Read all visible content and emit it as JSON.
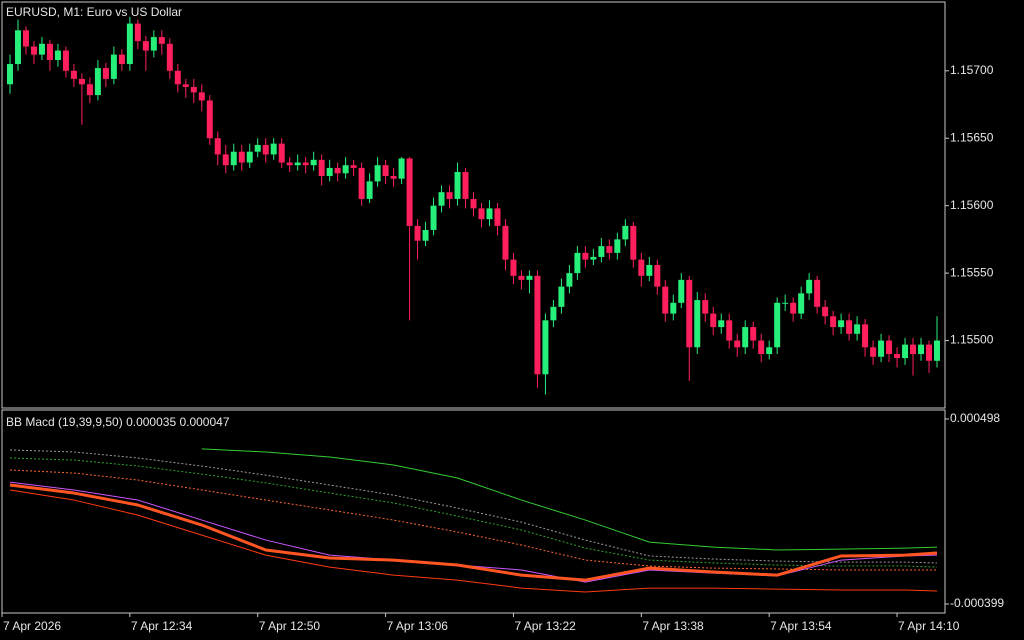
{
  "chart_data": [
    {
      "type": "candlestick",
      "title": "EURUSD, M1:  Euro vs US Dollar",
      "up_color": "#26f07a",
      "down_color": "#ff1f5c",
      "xlim": [
        -1,
        117
      ],
      "ylim": [
        1.1545,
        1.15751
      ],
      "yticks": [
        {
          "value": 1.157,
          "label": "1.15700"
        },
        {
          "value": 1.1565,
          "label": "1.15650"
        },
        {
          "value": 1.156,
          "label": "1.15600"
        },
        {
          "value": 1.1555,
          "label": "1.15550"
        },
        {
          "value": 1.155,
          "label": "1.15500"
        }
      ],
      "open": [
        1.1569,
        1.15705,
        1.1573,
        1.15718,
        1.15712,
        1.1572,
        1.15708,
        1.15715,
        1.157,
        1.15694,
        1.1569,
        1.15682,
        1.15702,
        1.15694,
        1.15712,
        1.15705,
        1.15735,
        1.15722,
        1.15715,
        1.15725,
        1.1572,
        1.157,
        1.1569,
        1.15688,
        1.15684,
        1.15678,
        1.1565,
        1.15638,
        1.1563,
        1.1564,
        1.15632,
        1.1564,
        1.15645,
        1.15638,
        1.15646,
        1.15632,
        1.1563,
        1.15632,
        1.1563,
        1.15634,
        1.15622,
        1.15628,
        1.15624,
        1.1563,
        1.15628,
        1.15605,
        1.15618,
        1.1563,
        1.15622,
        1.1562,
        1.15635,
        1.15585,
        1.15574,
        1.15582,
        1.156,
        1.1561,
        1.15605,
        1.15625,
        1.15605,
        1.15598,
        1.1559,
        1.15598,
        1.15585,
        1.1556,
        1.15548,
        1.15545,
        1.15548,
        1.15475,
        1.15515,
        1.15525,
        1.1554,
        1.1555,
        1.15565,
        1.1556,
        1.15562,
        1.1557,
        1.15565,
        1.15575,
        1.15585,
        1.1556,
        1.15548,
        1.15556,
        1.1554,
        1.1552,
        1.15528,
        1.15545,
        1.15495,
        1.1553,
        1.1552,
        1.1551,
        1.15515,
        1.155,
        1.15495,
        1.1551,
        1.155,
        1.1549,
        1.15495,
        1.15528,
        1.15528,
        1.1552,
        1.15535,
        1.15545,
        1.15525,
        1.15518,
        1.1551,
        1.15515,
        1.15505,
        1.15512,
        1.15495,
        1.15488,
        1.155,
        1.1549,
        1.15487,
        1.15497,
        1.1549,
        1.15497,
        1.15485
      ],
      "high": [
        1.15712,
        1.15738,
        1.15733,
        1.15722,
        1.15725,
        1.15723,
        1.1572,
        1.15718,
        1.15705,
        1.15698,
        1.15695,
        1.15708,
        1.15706,
        1.15718,
        1.15716,
        1.1574,
        1.15738,
        1.15726,
        1.1573,
        1.1573,
        1.15724,
        1.15705,
        1.15694,
        1.15694,
        1.1569,
        1.15682,
        1.15655,
        1.15645,
        1.15646,
        1.15645,
        1.15646,
        1.1565,
        1.1565,
        1.1565,
        1.1565,
        1.15636,
        1.15638,
        1.15636,
        1.1564,
        1.15638,
        1.15634,
        1.15632,
        1.15636,
        1.15634,
        1.15632,
        1.15624,
        1.15636,
        1.15634,
        1.15628,
        1.15636,
        1.15636,
        1.1559,
        1.15588,
        1.15606,
        1.15615,
        1.15615,
        1.15632,
        1.15628,
        1.1561,
        1.15602,
        1.15604,
        1.15602,
        1.1559,
        1.15565,
        1.15552,
        1.15552,
        1.15552,
        1.1552,
        1.1553,
        1.15546,
        1.15556,
        1.1557,
        1.1557,
        1.15568,
        1.15576,
        1.15575,
        1.1558,
        1.1559,
        1.15588,
        1.15565,
        1.15562,
        1.1556,
        1.15545,
        1.15534,
        1.1555,
        1.15548,
        1.15536,
        1.15535,
        1.15525,
        1.1552,
        1.1552,
        1.15505,
        1.15515,
        1.15514,
        1.15505,
        1.155,
        1.15532,
        1.15534,
        1.15532,
        1.1554,
        1.1555,
        1.15548,
        1.1553,
        1.15522,
        1.1552,
        1.1552,
        1.15518,
        1.15516,
        1.155,
        1.15505,
        1.15504,
        1.15495,
        1.15502,
        1.15502,
        1.15502,
        1.155,
        1.15518
      ],
      "low": [
        1.15683,
        1.157,
        1.15712,
        1.15705,
        1.15708,
        1.157,
        1.15703,
        1.15695,
        1.15688,
        1.1566,
        1.15676,
        1.15678,
        1.15688,
        1.1569,
        1.157,
        1.157,
        1.15716,
        1.157,
        1.1571,
        1.15712,
        1.15694,
        1.15684,
        1.1568,
        1.15676,
        1.1567,
        1.15645,
        1.1563,
        1.15624,
        1.15626,
        1.15626,
        1.15628,
        1.15636,
        1.15632,
        1.15634,
        1.15628,
        1.15625,
        1.15626,
        1.15624,
        1.15626,
        1.15615,
        1.15618,
        1.15618,
        1.1562,
        1.15622,
        1.156,
        1.15602,
        1.15614,
        1.15616,
        1.15614,
        1.15616,
        1.15515,
        1.1556,
        1.1557,
        1.15578,
        1.15595,
        1.15598,
        1.156,
        1.15598,
        1.15592,
        1.15584,
        1.15585,
        1.15578,
        1.15552,
        1.15542,
        1.15538,
        1.15535,
        1.15465,
        1.1546,
        1.1551,
        1.1552,
        1.15535,
        1.15545,
        1.15554,
        1.15556,
        1.15558,
        1.1556,
        1.1556,
        1.1557,
        1.15554,
        1.1554,
        1.15544,
        1.15534,
        1.15514,
        1.15515,
        1.15524,
        1.1547,
        1.1549,
        1.15514,
        1.15504,
        1.15505,
        1.15494,
        1.15488,
        1.1549,
        1.15494,
        1.15484,
        1.15486,
        1.1549,
        1.15522,
        1.15514,
        1.15516,
        1.1553,
        1.1552,
        1.15512,
        1.15504,
        1.15505,
        1.155,
        1.155,
        1.15488,
        1.15482,
        1.15484,
        1.15484,
        1.1548,
        1.15482,
        1.15474,
        1.15485,
        1.15476,
        1.1548
      ],
      "close": [
        1.15705,
        1.1573,
        1.15718,
        1.15712,
        1.1572,
        1.15708,
        1.15715,
        1.157,
        1.15694,
        1.1569,
        1.15682,
        1.15702,
        1.15694,
        1.15712,
        1.15705,
        1.15735,
        1.15722,
        1.15715,
        1.15725,
        1.1572,
        1.157,
        1.1569,
        1.15688,
        1.15684,
        1.15678,
        1.1565,
        1.15638,
        1.1563,
        1.1564,
        1.15632,
        1.1564,
        1.15645,
        1.15638,
        1.15646,
        1.15632,
        1.1563,
        1.15632,
        1.1563,
        1.15634,
        1.15622,
        1.15628,
        1.15624,
        1.1563,
        1.15628,
        1.15605,
        1.15618,
        1.1563,
        1.15622,
        1.1562,
        1.15635,
        1.15585,
        1.15574,
        1.15582,
        1.156,
        1.1561,
        1.15605,
        1.15625,
        1.15605,
        1.15598,
        1.1559,
        1.15598,
        1.15585,
        1.1556,
        1.15548,
        1.15545,
        1.15548,
        1.15475,
        1.15515,
        1.15525,
        1.1554,
        1.1555,
        1.15565,
        1.1556,
        1.15562,
        1.1557,
        1.15565,
        1.15575,
        1.15585,
        1.1556,
        1.15548,
        1.15556,
        1.1554,
        1.1552,
        1.15528,
        1.15545,
        1.15495,
        1.1553,
        1.1552,
        1.1551,
        1.15515,
        1.155,
        1.15495,
        1.1551,
        1.155,
        1.1549,
        1.15495,
        1.15528,
        1.15528,
        1.1552,
        1.15535,
        1.15545,
        1.15525,
        1.15518,
        1.1551,
        1.15515,
        1.15505,
        1.15512,
        1.15495,
        1.15488,
        1.155,
        1.1549,
        1.15487,
        1.15497,
        1.1549,
        1.15497,
        1.15485,
        1.155
      ]
    },
    {
      "type": "line",
      "title": "BB Macd (19,39,9,50) 0.000035 0.000047",
      "xlim": [
        -1,
        117
      ],
      "ylim": [
        -0.000399,
        0.000498
      ],
      "yticks": [
        0.000498,
        -0.000399
      ],
      "xticks": [
        {
          "value": -1,
          "label": "7 Apr 2026"
        },
        {
          "value": 15,
          "label": "7 Apr 12:34"
        },
        {
          "value": 31,
          "label": "7 Apr 12:50"
        },
        {
          "value": 47,
          "label": "7 Apr 13:06"
        },
        {
          "value": 63,
          "label": "7 Apr 13:22"
        },
        {
          "value": 79,
          "label": "7 Apr 13:38"
        },
        {
          "value": 95,
          "label": "7 Apr 13:54"
        },
        {
          "value": 111,
          "label": "7 Apr 14:10"
        }
      ],
      "x": [
        0,
        8,
        16,
        24,
        32,
        40,
        48,
        56,
        64,
        72,
        80,
        88,
        96,
        104,
        112,
        116
      ],
      "series": [
        {
          "color": "#9a9a9a",
          "dashed": true,
          "values": [
            0.000348,
            0.000338,
            0.000309,
            0.00027,
            0.000226,
            0.000178,
            0.000129,
            6.6e-05,
            -2e-06,
            -8.9e-05,
            -0.000166,
            -0.000181,
            -0.000191,
            -0.000196,
            -0.000196,
            -0.0002
          ]
        },
        {
          "color": "#2fa52f",
          "dashed": true,
          "values": [
            0.000309,
            0.000299,
            0.00027,
            0.000231,
            0.000188,
            0.000139,
            9.1e-05,
            2.7e-05,
            -4e-05,
            -0.000128,
            -0.000186,
            -0.0002,
            -0.00021,
            -0.000215,
            -0.000215,
            -0.00022
          ]
        },
        {
          "color": "#ff6633",
          "dashed": true,
          "values": [
            0.000251,
            0.000236,
            0.000202,
            0.000154,
            0.000105,
            5.7e-05,
            8e-06,
            -5e-05,
            -0.000113,
            -0.000186,
            -0.000215,
            -0.000225,
            -0.000229,
            -0.000234,
            -0.000234,
            -0.000234
          ]
        },
        {
          "color": "#33cc33",
          "values": [
            null,
            null,
            null,
            0.000353,
            0.000338,
            0.000314,
            0.000275,
            0.000212,
            0.000105,
            8e-06,
            -9.9e-05,
            -0.000123,
            -0.000137,
            -0.000133,
            -0.000128,
            -0.000123
          ]
        },
        {
          "color": "#ff3a10",
          "values": [
            0.000154,
            0.000105,
            3.2e-05,
            -6.5e-05,
            -0.000162,
            -0.00022,
            -0.000259,
            -0.000283,
            -0.000322,
            -0.000341,
            -0.000322,
            -0.000322,
            -0.000327,
            -0.000331,
            -0.000331,
            -0.000336
          ]
        },
        {
          "color": "#cc55ff",
          "values": [
            0.000192,
            0.000154,
            0.000105,
            8e-06,
            -8.9e-05,
            -0.000162,
            -0.000186,
            -0.00021,
            -0.000234,
            -0.000293,
            -0.000234,
            -0.000249,
            -0.000263,
            -0.000186,
            -0.000166,
            -0.000162
          ]
        },
        {
          "color": "#ff5522",
          "thick": true,
          "values": [
            0.000178,
            0.000139,
            8.1e-05,
            -1.6e-05,
            -0.000137,
            -0.000176,
            -0.000186,
            -0.00021,
            -0.000259,
            -0.000283,
            -0.000225,
            -0.000244,
            -0.000259,
            -0.000166,
            -0.000162,
            -0.000152
          ]
        }
      ]
    }
  ]
}
